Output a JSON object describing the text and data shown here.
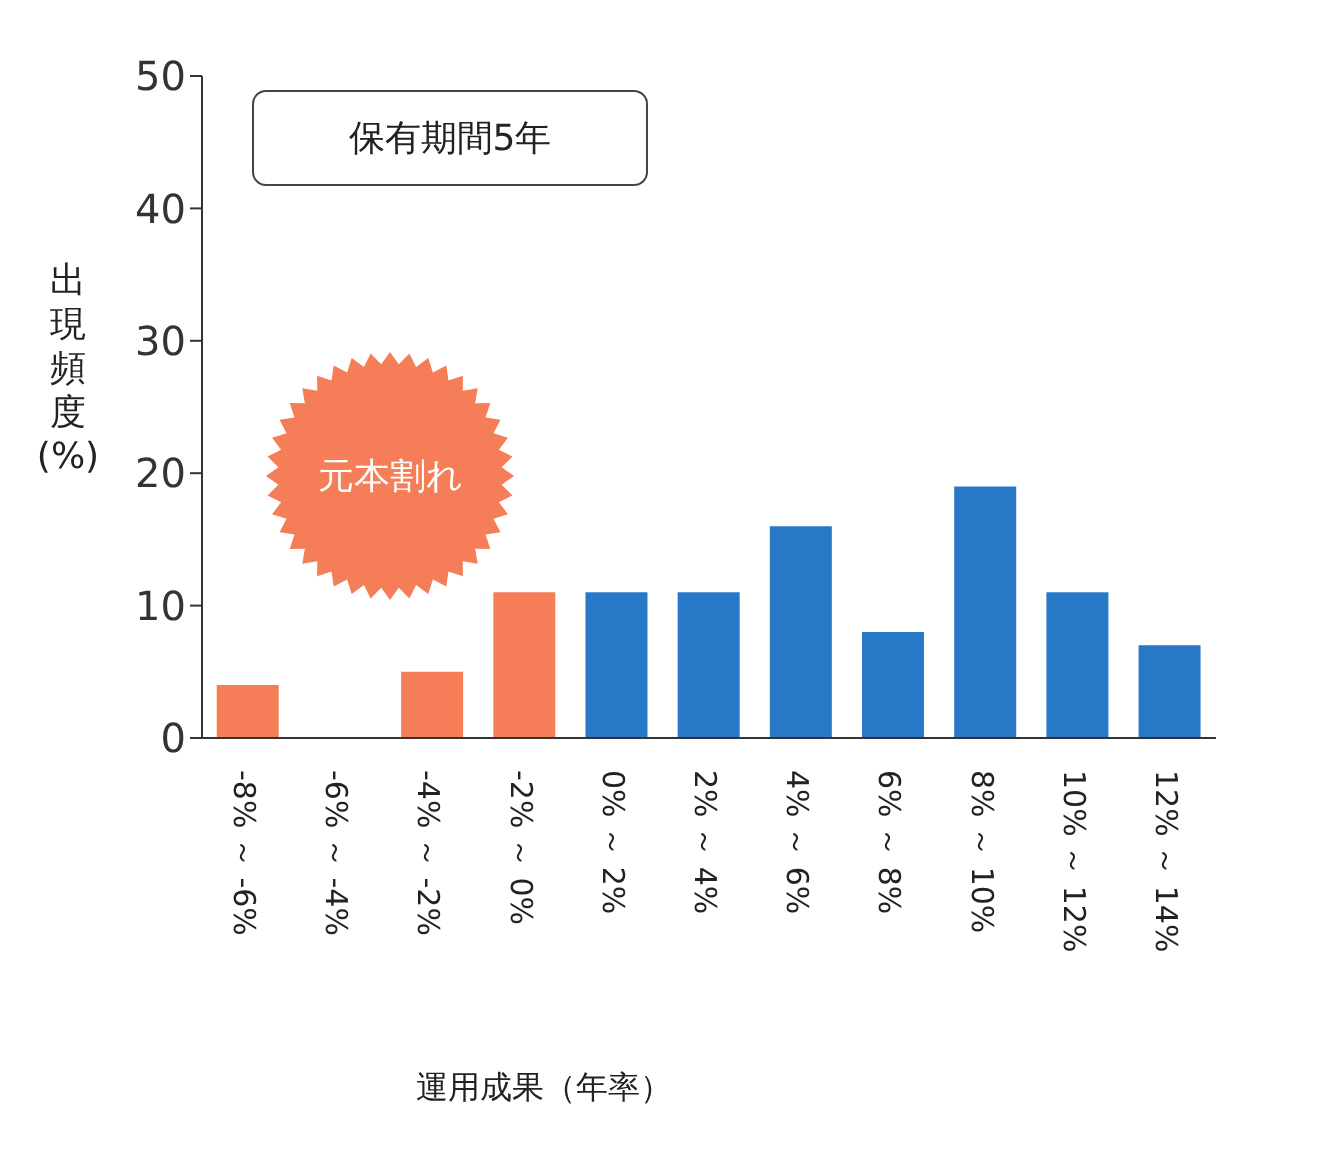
{
  "chart_data": {
    "type": "bar",
    "title": "保有期間5年",
    "xlabel": "運用成果（年率）",
    "ylabel": "出現頻度(%)",
    "categories": [
      "-8% ～ -6%",
      "-6% ～ -4%",
      "-4% ～ -2%",
      "-2% ～ 0%",
      "0% ～ 2%",
      "2% ～ 4%",
      "4% ～ 6%",
      "6% ～ 8%",
      "8% ～ 10%",
      "10% ～ 12%",
      "12% ～ 14%"
    ],
    "values": [
      4,
      0,
      5,
      11,
      11,
      11,
      16,
      8,
      19,
      11,
      7
    ],
    "colors": [
      "#f57e58",
      "#f57e58",
      "#f57e58",
      "#f57e58",
      "#2878c8",
      "#2878c8",
      "#2878c8",
      "#2878c8",
      "#2878c8",
      "#2878c8",
      "#2878c8"
    ],
    "ylim": [
      0,
      50
    ],
    "yticks": [
      0,
      10,
      20,
      30,
      40,
      50
    ],
    "annotations": [
      "元本割れ"
    ],
    "grid": false,
    "legend": false
  }
}
